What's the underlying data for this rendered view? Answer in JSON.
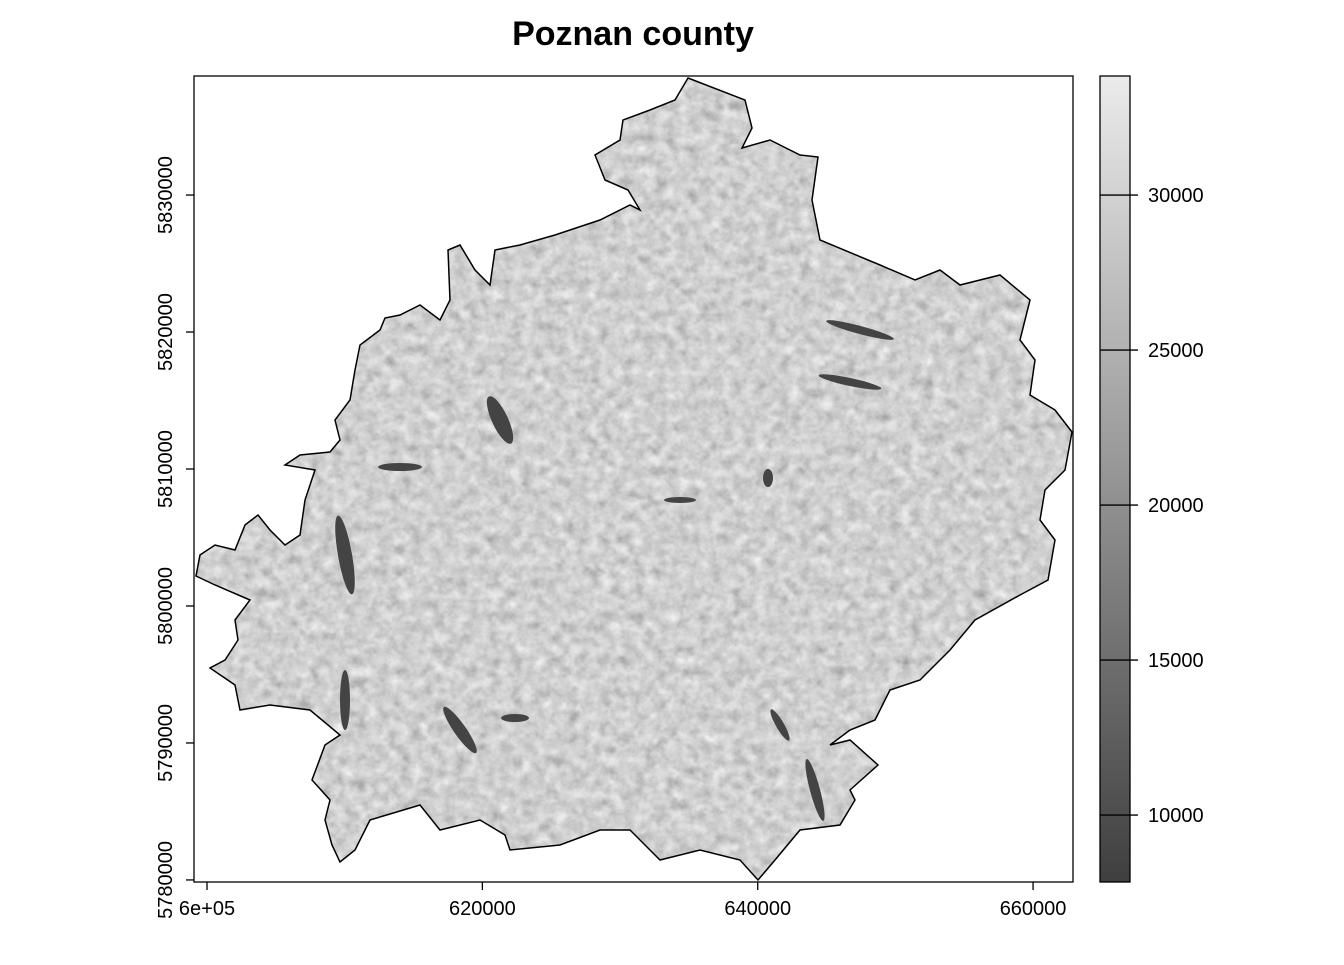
{
  "chart_data": {
    "type": "raster",
    "title": "Poznan county",
    "xlim": [
      599055,
      662900
    ],
    "ylim": [
      5779850,
      5838690
    ],
    "xticks": [
      {
        "value": 600000,
        "label": "6e+05"
      },
      620000,
      640000,
      660000
    ],
    "yticks": [
      5780000,
      5790000,
      5800000,
      5810000,
      5820000,
      5830000
    ],
    "colorbar": {
      "lim": [
        7840,
        33840
      ],
      "ticks": [
        10000,
        15000,
        20000,
        25000,
        30000
      ],
      "colors": [
        "#3f3f3f",
        "#ebebeb"
      ]
    }
  }
}
